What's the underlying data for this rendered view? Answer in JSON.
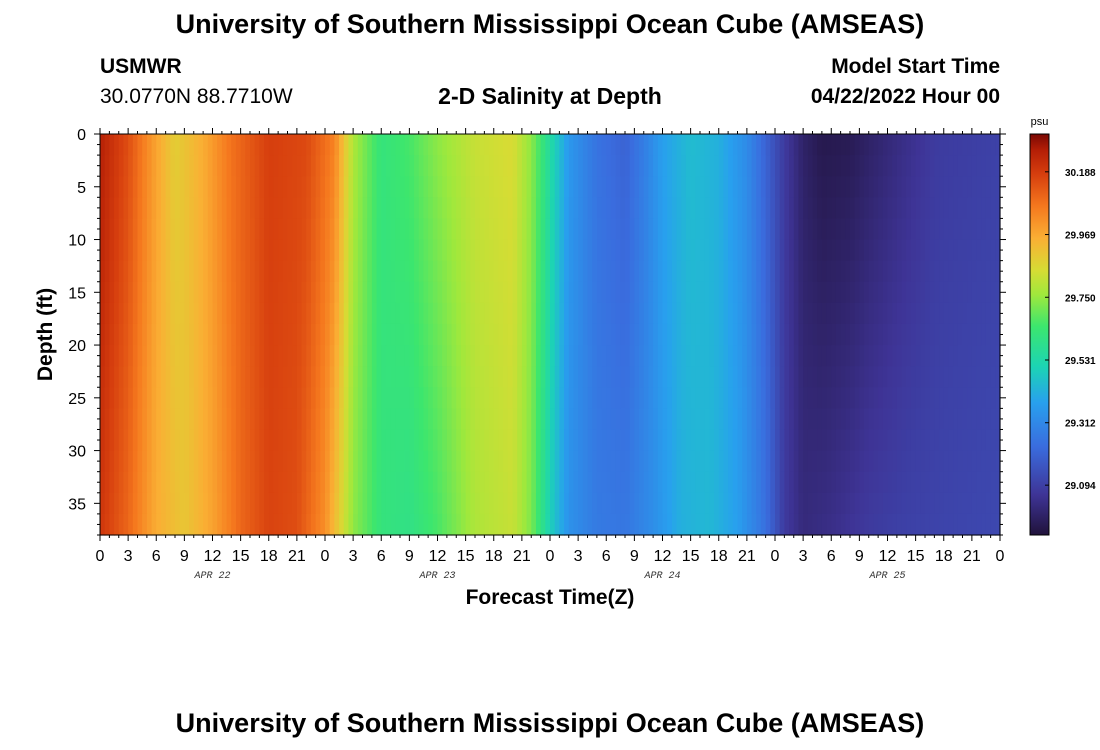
{
  "header": {
    "title": "University of Southern Mississippi Ocean Cube (AMSEAS)",
    "station_name": "USMWR",
    "coordinates": "30.0770N  88.7710W",
    "subtitle": "2-D Salinity at Depth",
    "model_start_label": "Model Start Time",
    "model_start_value": "04/22/2022 Hour 00"
  },
  "footer": {
    "title": "University of Southern Mississippi Ocean Cube (AMSEAS)"
  },
  "chart_data": {
    "type": "heatmap",
    "title": "2-D Salinity at Depth",
    "xlabel": "Forecast Time(Z)",
    "ylabel": "Depth (ft)",
    "x_hours_range": [
      0,
      96
    ],
    "x_tick_labels": [
      "0",
      "3",
      "6",
      "9",
      "12",
      "15",
      "18",
      "21",
      "0",
      "3",
      "6",
      "9",
      "12",
      "15",
      "18",
      "21",
      "0",
      "3",
      "6",
      "9",
      "12",
      "15",
      "18",
      "21",
      "0",
      "3",
      "6",
      "9",
      "12",
      "15",
      "18",
      "21",
      "0"
    ],
    "date_labels": [
      {
        "label": "APR 22",
        "hour": 12
      },
      {
        "label": "APR 23",
        "hour": 36
      },
      {
        "label": "APR 24",
        "hour": 60
      },
      {
        "label": "APR 25",
        "hour": 84
      }
    ],
    "y_ticks": [
      0,
      5,
      10,
      15,
      20,
      25,
      30,
      35
    ],
    "ylim": [
      0,
      38
    ],
    "y_inverted": true,
    "colorbar": {
      "unit": "psu",
      "ticks": [
        "30.188",
        "29.969",
        "29.750",
        "29.531",
        "29.312",
        "29.094"
      ],
      "range": [
        28.92,
        30.32
      ]
    },
    "surface_salinity_by_hour": [
      [
        0,
        30.26
      ],
      [
        3,
        30.15
      ],
      [
        6,
        29.98
      ],
      [
        8,
        29.88
      ],
      [
        11,
        29.96
      ],
      [
        14,
        30.08
      ],
      [
        18,
        30.18
      ],
      [
        22,
        30.16
      ],
      [
        25,
        30.05
      ],
      [
        27,
        29.78
      ],
      [
        30,
        29.62
      ],
      [
        33,
        29.66
      ],
      [
        36,
        29.74
      ],
      [
        40,
        29.82
      ],
      [
        44,
        29.85
      ],
      [
        46,
        29.74
      ],
      [
        48,
        29.55
      ],
      [
        50,
        29.36
      ],
      [
        53,
        29.25
      ],
      [
        56,
        29.2
      ],
      [
        58,
        29.28
      ],
      [
        60,
        29.38
      ],
      [
        63,
        29.45
      ],
      [
        66,
        29.42
      ],
      [
        69,
        29.32
      ],
      [
        71,
        29.2
      ],
      [
        73,
        29.08
      ],
      [
        75,
        28.99
      ],
      [
        77,
        28.95
      ],
      [
        80,
        28.96
      ],
      [
        83,
        29.0
      ],
      [
        86,
        29.04
      ],
      [
        89,
        29.08
      ],
      [
        96,
        29.1
      ]
    ],
    "bottom_salinity_by_hour": [
      [
        0,
        30.2
      ],
      [
        3,
        30.1
      ],
      [
        6,
        29.96
      ],
      [
        9,
        29.9
      ],
      [
        12,
        29.98
      ],
      [
        15,
        30.1
      ],
      [
        18,
        30.17
      ],
      [
        21,
        30.15
      ],
      [
        24,
        30.02
      ],
      [
        27,
        29.74
      ],
      [
        30,
        29.62
      ],
      [
        33,
        29.6
      ],
      [
        36,
        29.66
      ],
      [
        40,
        29.78
      ],
      [
        44,
        29.82
      ],
      [
        46,
        29.72
      ],
      [
        48,
        29.5
      ],
      [
        50,
        29.34
      ],
      [
        53,
        29.27
      ],
      [
        56,
        29.26
      ],
      [
        59,
        29.33
      ],
      [
        62,
        29.42
      ],
      [
        65,
        29.44
      ],
      [
        68,
        29.38
      ],
      [
        71,
        29.24
      ],
      [
        73,
        29.08
      ],
      [
        75,
        29.02
      ],
      [
        78,
        29.04
      ],
      [
        82,
        29.08
      ],
      [
        86,
        29.1
      ],
      [
        96,
        29.12
      ]
    ]
  }
}
